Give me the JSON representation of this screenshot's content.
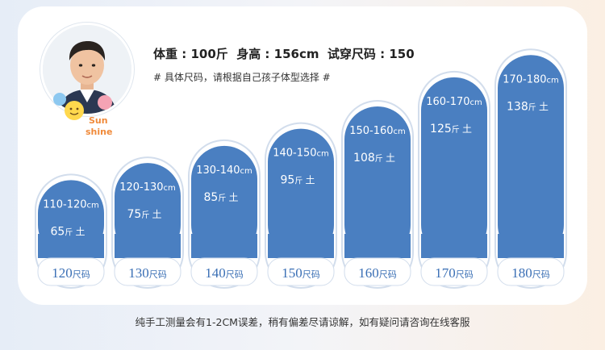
{
  "header": {
    "model_info": "体重 : 100斤  身高 : 156cm  试穿尺码 : 150",
    "note": "# 具体尺码，请根据自己孩子体型选择 #"
  },
  "sticker_text": [
    "Sun",
    "shine"
  ],
  "footer": {
    "note": "纯手工测量会有1-2CM误差，稍有偏差尽请谅解，如有疑问请咨询在线客服"
  },
  "colors": {
    "bar_fill": "#4a7fc1",
    "bar_rim": "#d2ddec",
    "base_text": "#3a6fb5"
  },
  "chart_data": {
    "type": "bar",
    "categories": [
      "120",
      "130",
      "140",
      "150",
      "160",
      "170",
      "180"
    ],
    "size_unit": "尺码",
    "height_ranges": [
      "110-120",
      "120-130",
      "130-140",
      "140-150",
      "150-160",
      "160-170",
      "170-180"
    ],
    "height_unit": "cm",
    "values": [
      65,
      75,
      85,
      95,
      108,
      125,
      138
    ],
    "value_unit": "斤",
    "value_suffix": "土",
    "title": "",
    "xlabel": "",
    "ylabel": ""
  }
}
